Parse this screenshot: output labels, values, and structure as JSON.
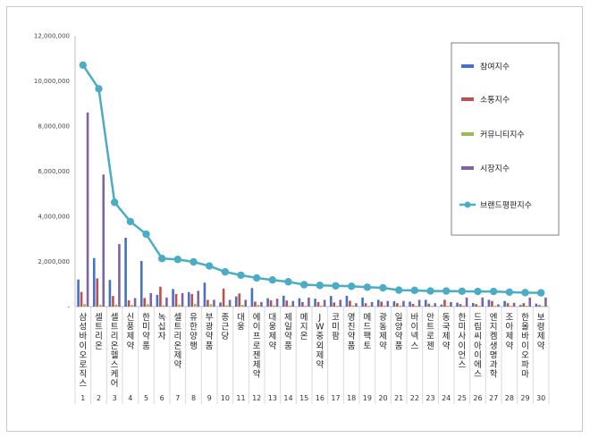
{
  "chart_data": {
    "type": "bar",
    "title": "",
    "xlabel": "",
    "ylabel": "",
    "ylim": [
      0,
      12000000
    ],
    "yticks": [
      0,
      2000000,
      4000000,
      6000000,
      8000000,
      10000000,
      12000000
    ],
    "ytick_labels": [
      "-",
      "2,000,000",
      "4,000,000",
      "6,000,000",
      "8,000,000",
      "10,000,000",
      "12,000,000"
    ],
    "grid": false,
    "legend_position": "top-right",
    "categories": [
      "삼성바이오로직스",
      "셀트리온",
      "셀트리온헬스케어",
      "신풍제약",
      "한미약품",
      "녹십자",
      "셀트리온제약",
      "유한양행",
      "부광약품",
      "종근당",
      "대웅",
      "에이프로젠제약",
      "대웅제약",
      "제일약품",
      "메지온",
      "JW중외제약",
      "코미팜",
      "영진약품",
      "메드팩토",
      "광동제약",
      "일양약품",
      "바이넥스",
      "안트로젠",
      "동국제약",
      "한미사이언스",
      "드림씨아이에스",
      "엔지켐생명과학",
      "조아제약",
      "한올바이오파마",
      "보령제약"
    ],
    "ranks": [
      "1",
      "2",
      "3",
      "4",
      "5",
      "6",
      "7",
      "8",
      "9",
      "10",
      "11",
      "12",
      "13",
      "14",
      "15",
      "16",
      "17",
      "18",
      "19",
      "20",
      "21",
      "22",
      "23",
      "24",
      "25",
      "26",
      "27",
      "28",
      "29",
      "30"
    ],
    "series": [
      {
        "name": "참여지수",
        "color": "#4472c4",
        "values": [
          1200000,
          2150000,
          1180000,
          3050000,
          2020000,
          520000,
          780000,
          640000,
          1060000,
          180000,
          450000,
          820000,
          370000,
          480000,
          370000,
          350000,
          470000,
          480000,
          400000,
          300000,
          240000,
          220000,
          300000,
          90000,
          170000,
          160000,
          300000,
          250000,
          70000,
          130000
        ]
      },
      {
        "name": "소통지수",
        "color": "#c0504d",
        "values": [
          650000,
          1250000,
          470000,
          280000,
          380000,
          880000,
          560000,
          560000,
          300000,
          800000,
          580000,
          220000,
          280000,
          270000,
          200000,
          200000,
          180000,
          260000,
          150000,
          220000,
          150000,
          120000,
          130000,
          300000,
          110000,
          110000,
          250000,
          150000,
          150000,
          70000
        ]
      },
      {
        "name": "커뮤니티지수",
        "color": "#9bbb59",
        "values": [
          120000,
          80000,
          90000,
          80000,
          110000,
          60000,
          90000,
          120000,
          110000,
          60000,
          80000,
          80000,
          60000,
          50000,
          40000,
          50000,
          40000,
          60000,
          40000,
          50000,
          50000,
          40000,
          40000,
          40000,
          40000,
          40000,
          40000,
          40000,
          40000,
          30000
        ]
      },
      {
        "name": "시장지수",
        "color": "#8064a2",
        "values": [
          8600000,
          5850000,
          2770000,
          380000,
          600000,
          400000,
          600000,
          700000,
          300000,
          300000,
          300000,
          200000,
          350000,
          250000,
          400000,
          300000,
          300000,
          150000,
          200000,
          250000,
          250000,
          300000,
          150000,
          200000,
          400000,
          400000,
          100000,
          170000,
          400000,
          400000
        ]
      },
      {
        "name": "브랜드평판지수",
        "color": "#4bacc6",
        "type": "line",
        "values": [
          10700000,
          9650000,
          4620000,
          3770000,
          3210000,
          2130000,
          2090000,
          1980000,
          1800000,
          1540000,
          1390000,
          1270000,
          1180000,
          1100000,
          970000,
          940000,
          920000,
          900000,
          860000,
          830000,
          730000,
          720000,
          690000,
          690000,
          680000,
          670000,
          670000,
          640000,
          620000,
          610000
        ]
      }
    ]
  }
}
